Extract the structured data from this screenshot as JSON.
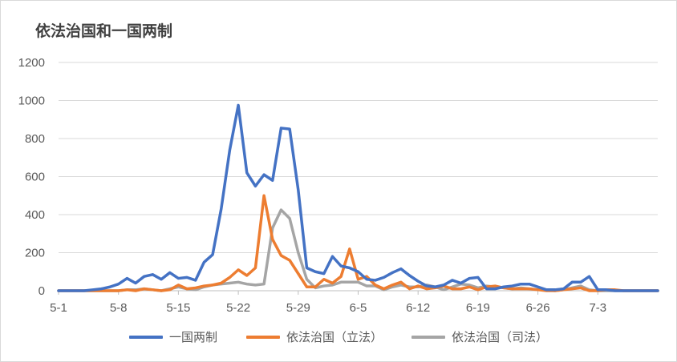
{
  "chart_data": {
    "type": "line",
    "title": "依法治国和一国两制",
    "xlabel": "",
    "ylabel": "",
    "ylim": [
      0,
      1200
    ],
    "y_ticks": [
      0,
      200,
      400,
      600,
      800,
      1000,
      1200
    ],
    "x_start": "5-1",
    "x_ticks": [
      "5-1",
      "5-8",
      "5-15",
      "5-22",
      "5-29",
      "6-5",
      "6-12",
      "6-19",
      "6-26",
      "7-3"
    ],
    "grid": "horizontal",
    "legend_position": "bottom",
    "series": [
      {
        "name": "一国两制",
        "color": "#4472c4",
        "values": [
          0,
          0,
          0,
          0,
          5,
          10,
          20,
          35,
          65,
          40,
          75,
          85,
          60,
          95,
          65,
          70,
          55,
          150,
          190,
          430,
          740,
          975,
          620,
          550,
          610,
          580,
          855,
          850,
          530,
          120,
          100,
          90,
          180,
          130,
          120,
          100,
          60,
          55,
          70,
          95,
          115,
          80,
          50,
          25,
          20,
          30,
          55,
          40,
          65,
          70,
          10,
          10,
          20,
          25,
          35,
          35,
          20,
          5,
          5,
          10,
          45,
          45,
          75,
          5,
          5,
          0,
          0,
          0,
          0,
          0,
          0
        ]
      },
      {
        "name": "依法治国（立法）",
        "color": "#ed7d31",
        "values": [
          0,
          0,
          0,
          0,
          0,
          0,
          0,
          0,
          5,
          0,
          10,
          5,
          0,
          5,
          30,
          10,
          15,
          25,
          30,
          40,
          70,
          110,
          80,
          120,
          500,
          270,
          185,
          160,
          90,
          20,
          20,
          60,
          40,
          75,
          220,
          60,
          75,
          30,
          10,
          30,
          45,
          10,
          25,
          10,
          15,
          25,
          10,
          10,
          20,
          5,
          20,
          25,
          15,
          10,
          10,
          10,
          5,
          0,
          0,
          5,
          10,
          15,
          0,
          0,
          5,
          5,
          0,
          0,
          0,
          0,
          0
        ]
      },
      {
        "name": "依法治国（司法）",
        "color": "#a5a5a5",
        "values": [
          0,
          0,
          0,
          0,
          0,
          0,
          0,
          0,
          5,
          5,
          10,
          5,
          0,
          10,
          20,
          10,
          5,
          20,
          30,
          35,
          40,
          45,
          35,
          30,
          35,
          330,
          425,
          380,
          200,
          60,
          15,
          25,
          30,
          45,
          45,
          45,
          25,
          25,
          5,
          20,
          30,
          20,
          20,
          30,
          20,
          5,
          20,
          35,
          30,
          15,
          25,
          20,
          15,
          10,
          15,
          10,
          5,
          5,
          0,
          5,
          15,
          25,
          5,
          0,
          0,
          0,
          0,
          0,
          0,
          0,
          0
        ]
      }
    ]
  }
}
